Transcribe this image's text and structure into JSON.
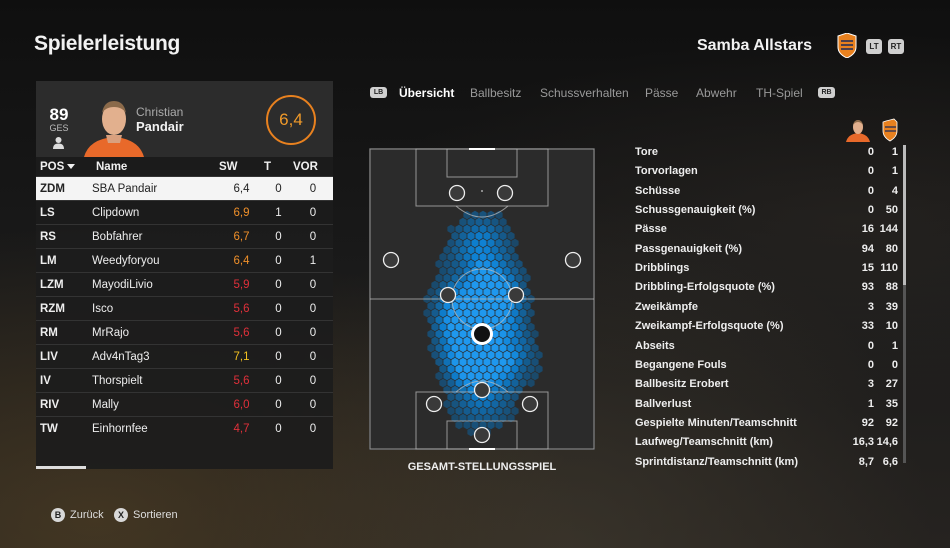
{
  "header": {
    "title": "Spielerleistung",
    "team_name": "Samba Allstars",
    "lt_label": "LT",
    "rt_label": "RT",
    "crest_color": "#e8811f"
  },
  "player_card": {
    "rating": "89",
    "rating_label": "GES",
    "first_name": "Christian",
    "last_name": "Pandair",
    "score": "6,4",
    "score_color": "#e8811f"
  },
  "roster": {
    "columns": [
      "POS",
      "Name",
      "SW",
      "T",
      "VOR"
    ],
    "rows": [
      {
        "pos": "ZDM",
        "name": "SBA Pandair",
        "sw": "6,4",
        "t": "0",
        "vor": "0",
        "sw_color": "#222222",
        "selected": true
      },
      {
        "pos": "LS",
        "name": "Clipdown",
        "sw": "6,9",
        "t": "1",
        "vor": "0",
        "sw_color": "#f0902a"
      },
      {
        "pos": "RS",
        "name": "Bobfahrer",
        "sw": "6,7",
        "t": "0",
        "vor": "0",
        "sw_color": "#f0902a"
      },
      {
        "pos": "LM",
        "name": "Weedyforyou",
        "sw": "6,4",
        "t": "0",
        "vor": "1",
        "sw_color": "#f0902a"
      },
      {
        "pos": "LZM",
        "name": "MayodiLivio",
        "sw": "5,9",
        "t": "0",
        "vor": "0",
        "sw_color": "#e0303a"
      },
      {
        "pos": "RZM",
        "name": "Isco",
        "sw": "5,6",
        "t": "0",
        "vor": "0",
        "sw_color": "#e0303a"
      },
      {
        "pos": "RM",
        "name": "MrRajo",
        "sw": "5,6",
        "t": "0",
        "vor": "0",
        "sw_color": "#e0303a"
      },
      {
        "pos": "LIV",
        "name": "Adv4nTag3",
        "sw": "7,1",
        "t": "0",
        "vor": "0",
        "sw_color": "#f2c020"
      },
      {
        "pos": "IV",
        "name": "Thorspielt",
        "sw": "5,6",
        "t": "0",
        "vor": "0",
        "sw_color": "#e0303a"
      },
      {
        "pos": "RIV",
        "name": "Mally",
        "sw": "6,0",
        "t": "0",
        "vor": "0",
        "sw_color": "#e0303a"
      },
      {
        "pos": "TW",
        "name": "Einhornfee",
        "sw": "4,7",
        "t": "0",
        "vor": "0",
        "sw_color": "#e0303a"
      }
    ]
  },
  "tabs": {
    "lb_label": "LB",
    "rb_label": "RB",
    "items": [
      {
        "label": "Übersicht",
        "active": true
      },
      {
        "label": "Ballbesitz",
        "active": false
      },
      {
        "label": "Schussverhalten",
        "active": false
      },
      {
        "label": "Pässe",
        "active": false
      },
      {
        "label": "Abwehr",
        "active": false
      },
      {
        "label": "TH-Spiel",
        "active": false
      }
    ]
  },
  "pitch": {
    "caption": "GESAMT-STELLUNGSSPIEL",
    "heatmap_color": "#1e90ff"
  },
  "stats": [
    {
      "label": "Tore",
      "player": "0",
      "team": "1"
    },
    {
      "label": "Torvorlagen",
      "player": "0",
      "team": "1"
    },
    {
      "label": "Schüsse",
      "player": "0",
      "team": "4"
    },
    {
      "label": "Schussgenauigkeit (%)",
      "player": "0",
      "team": "50"
    },
    {
      "label": "Pässe",
      "player": "16",
      "team": "144"
    },
    {
      "label": "Passgenauigkeit (%)",
      "player": "94",
      "team": "80"
    },
    {
      "label": "Dribblings",
      "player": "15",
      "team": "110"
    },
    {
      "label": "Dribbling-Erfolgsquote (%)",
      "player": "93",
      "team": "88"
    },
    {
      "label": "Zweikämpfe",
      "player": "3",
      "team": "39"
    },
    {
      "label": "Zweikampf-Erfolgsquote (%)",
      "player": "33",
      "team": "10"
    },
    {
      "label": "Abseits",
      "player": "0",
      "team": "1"
    },
    {
      "label": "Begangene Fouls",
      "player": "0",
      "team": "0"
    },
    {
      "label": "Ballbesitz Erobert",
      "player": "3",
      "team": "27"
    },
    {
      "label": "Ballverlust",
      "player": "1",
      "team": "35"
    },
    {
      "label": "Gespielte Minuten/Teamschnitt",
      "player": "92",
      "team": "92"
    },
    {
      "label": "Laufweg/Teamschnitt (km)",
      "player": "16,3",
      "team": "14,6"
    },
    {
      "label": "Sprintdistanz/Teamschnitt (km)",
      "player": "8,7",
      "team": "6,6"
    }
  ],
  "footer": {
    "back_button": "B",
    "back_label": "Zurück",
    "sort_button": "X",
    "sort_label": "Sortieren"
  }
}
